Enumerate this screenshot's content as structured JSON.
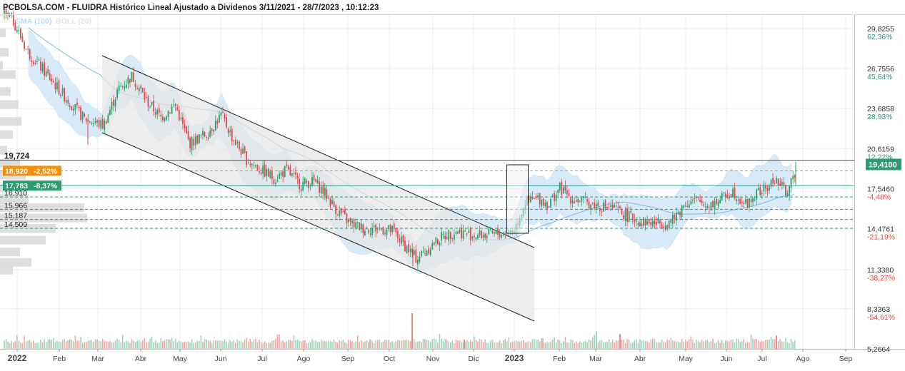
{
  "header": {
    "title": "PCBOLSA.COM - FLUIDRA Histórico Lineal Ajustado a Dividenos 3/11/2021 - 28/7/2023 , 10:12:23",
    "legend_sma": "SMA (100)",
    "legend_boll": "BOLL (20)"
  },
  "colors": {
    "up": "#26a269",
    "down": "#e5484d",
    "sma": "#7fb8e6",
    "boll_fill": "#cfe6f7",
    "channel_fill": "#e6e6e6",
    "orange": "#f4900c",
    "green": "#2e9a6f",
    "teal": "#1aa39a",
    "grid": "#eeeeee"
  },
  "chart_data": {
    "type": "candlestick",
    "title": "PCBOLSA.COM - FLUIDRA Histórico Lineal Ajustado a Dividenos 3/11/2021 - 28/7/2023 , 10:12:23",
    "ylim": [
      5.2664,
      32.4
    ],
    "x_ticks": [
      "2022",
      "Feb",
      "Mar",
      "Abr",
      "May",
      "Jun",
      "Jul",
      "Ago",
      "Sep",
      "Oct",
      "Nov",
      "Dic",
      "2023",
      "Feb",
      "Mar",
      "Abr",
      "May",
      "Jun",
      "Jul",
      "Ago",
      "Sep"
    ],
    "right_axis": [
      {
        "price": "29,8255",
        "pct": "62,36%"
      },
      {
        "price": "26,7556",
        "pct": "45,64%"
      },
      {
        "price": "23,6858",
        "pct": "28,93%"
      },
      {
        "price": "20,6159",
        "pct": "12,22%"
      },
      {
        "price": "17,5460",
        "pct": "-4,48%"
      },
      {
        "price": "14,4761",
        "pct": "-21,19%"
      },
      {
        "price": "11,3380",
        "pct": "-38,27%"
      },
      {
        "price": "8,3363",
        "pct": "-54,61%"
      },
      {
        "price": "5,2664",
        "pct": ""
      }
    ],
    "current_price": "19,4100",
    "levels": [
      {
        "label": "19,724",
        "value": 19.724,
        "style": "plain"
      },
      {
        "label": "18,920",
        "pct": "-2,52%",
        "value": 18.92,
        "style": "orange"
      },
      {
        "label": "17,783",
        "pct": "-8,37%",
        "value": 17.783,
        "style": "green"
      },
      {
        "label": "16,910",
        "value": 16.91,
        "style": "plain"
      },
      {
        "label": "15,966",
        "value": 15.966,
        "style": "plain"
      },
      {
        "label": "15,187",
        "value": 15.187,
        "style": "plain"
      },
      {
        "label": "14,509",
        "value": 14.509,
        "style": "plain"
      }
    ],
    "price_path": [
      [
        0,
        31.2
      ],
      [
        18,
        30.5
      ],
      [
        38,
        28.1
      ],
      [
        58,
        26.8
      ],
      [
        88,
        24.8
      ],
      [
        118,
        22.9
      ],
      [
        145,
        22.4
      ],
      [
        165,
        25.1
      ],
      [
        185,
        26.2
      ],
      [
        205,
        24.3
      ],
      [
        225,
        23.0
      ],
      [
        245,
        24.0
      ],
      [
        265,
        21.0
      ],
      [
        290,
        21.8
      ],
      [
        310,
        23.2
      ],
      [
        325,
        21.5
      ],
      [
        345,
        19.8
      ],
      [
        365,
        19.0
      ],
      [
        385,
        18.3
      ],
      [
        400,
        19.0
      ],
      [
        420,
        17.9
      ],
      [
        440,
        18.1
      ],
      [
        455,
        17.2
      ],
      [
        470,
        16.0
      ],
      [
        490,
        14.9
      ],
      [
        510,
        14.5
      ],
      [
        530,
        14.5
      ],
      [
        550,
        14.3
      ],
      [
        565,
        13.3
      ],
      [
        583,
        12.2
      ],
      [
        600,
        13.0
      ],
      [
        620,
        13.9
      ],
      [
        640,
        14.3
      ],
      [
        660,
        14.0
      ],
      [
        680,
        14.0
      ],
      [
        700,
        14.1
      ],
      [
        720,
        14.4
      ],
      [
        735,
        16.5
      ],
      [
        755,
        16.8
      ],
      [
        768,
        16.3
      ],
      [
        783,
        17.6
      ],
      [
        800,
        16.8
      ],
      [
        820,
        16.5
      ],
      [
        840,
        16.2
      ],
      [
        860,
        16.0
      ],
      [
        880,
        15.4
      ],
      [
        900,
        15.0
      ],
      [
        920,
        14.9
      ],
      [
        940,
        15.0
      ],
      [
        960,
        16.5
      ],
      [
        975,
        16.6
      ],
      [
        990,
        16.3
      ],
      [
        1005,
        16.6
      ],
      [
        1025,
        17.4
      ],
      [
        1045,
        16.3
      ],
      [
        1060,
        17.2
      ],
      [
        1075,
        17.6
      ],
      [
        1085,
        18.3
      ],
      [
        1100,
        17.3
      ],
      [
        1110,
        18.1
      ],
      [
        1115,
        19.41
      ]
    ],
    "volume_spikes": [
      [
        577,
        8.0
      ],
      [
        835,
        6.6
      ],
      [
        868,
        6.4
      ],
      [
        760,
        6.1
      ],
      [
        1087,
        6.3
      ],
      [
        518,
        6.0
      ],
      [
        650,
        6.0
      ]
    ]
  }
}
